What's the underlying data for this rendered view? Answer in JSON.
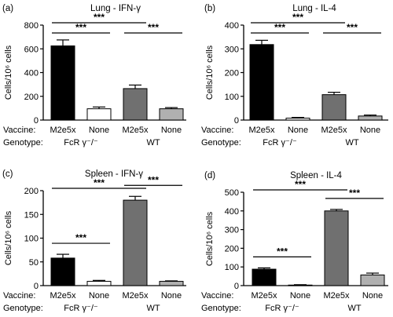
{
  "chart_data": [
    {
      "type": "bar",
      "panel_label": "(a)",
      "title": "Lung - IFN-γ",
      "ylabel": "Cells/10⁶ cells",
      "ylim": [
        0,
        800
      ],
      "yticks": [
        "0",
        "200",
        "400",
        "600",
        "800"
      ],
      "row_labels": [
        "Vaccine:",
        "Genotype:"
      ],
      "categories": [
        "M2e5x",
        "None",
        "M2e5x",
        "None"
      ],
      "groups": [
        "FcR γ⁻/⁻",
        "WT"
      ],
      "values": [
        625,
        95,
        265,
        95
      ],
      "errors": [
        50,
        15,
        30,
        10
      ],
      "colors": [
        "#000000",
        "#ffffff",
        "#707070",
        "#b0b0b0"
      ],
      "significance": [
        {
          "from": 0,
          "to": 2,
          "label": "***"
        },
        {
          "from": 0,
          "to": 1,
          "label": "***"
        },
        {
          "from": 2,
          "to": 3,
          "label": "***"
        }
      ]
    },
    {
      "type": "bar",
      "panel_label": "(b)",
      "title": "Lung - IL-4",
      "ylabel": "Cells/10⁶ cells",
      "ylim": [
        0,
        400
      ],
      "yticks": [
        "0",
        "100",
        "200",
        "300",
        "400"
      ],
      "row_labels": [
        "Vaccine:",
        "Genotype:"
      ],
      "categories": [
        "M2e5x",
        "None",
        "M2e5x",
        "None"
      ],
      "groups": [
        "FcR γ⁻/⁻",
        "WT"
      ],
      "values": [
        318,
        8,
        107,
        17
      ],
      "errors": [
        18,
        3,
        10,
        4
      ],
      "colors": [
        "#000000",
        "#ffffff",
        "#707070",
        "#b0b0b0"
      ],
      "significance": [
        {
          "from": 0,
          "to": 2,
          "label": "***"
        },
        {
          "from": 0,
          "to": 1,
          "label": "***"
        },
        {
          "from": 2,
          "to": 3,
          "label": "***"
        }
      ]
    },
    {
      "type": "bar",
      "panel_label": "(c)",
      "title": "Spleen - IFN-γ",
      "ylabel": "Cells/10⁶ cells",
      "ylim": [
        0,
        200
      ],
      "yticks": [
        "0",
        "50",
        "100",
        "150",
        "200"
      ],
      "row_labels": [
        "Vaccine:",
        "Genotype:"
      ],
      "categories": [
        "M2e5x",
        "None",
        "M2e5x",
        "None"
      ],
      "groups": [
        "FcR γ⁻/⁻",
        "WT"
      ],
      "values": [
        58,
        9,
        180,
        9
      ],
      "errors": [
        8,
        2,
        8,
        1
      ],
      "colors": [
        "#000000",
        "#ffffff",
        "#707070",
        "#b0b0b0"
      ],
      "significance": [
        {
          "from": 0,
          "to": 2,
          "label": "***"
        },
        {
          "from": 2,
          "to": 3,
          "label": "***"
        },
        {
          "from": 0,
          "to": 1,
          "label": "***"
        }
      ]
    },
    {
      "type": "bar",
      "panel_label": "(d)",
      "title": "Spleen - IL-4",
      "ylabel": "Cells/10⁶ cells",
      "ylim": [
        0,
        500
      ],
      "yticks": [
        "0",
        "100",
        "200",
        "300",
        "400",
        "500"
      ],
      "row_labels": [
        "Vaccine:",
        "Genotype:"
      ],
      "categories": [
        "M2e5x",
        "None",
        "M2e5x",
        "None"
      ],
      "groups": [
        "FcR γ⁻/⁻",
        "WT"
      ],
      "values": [
        88,
        3,
        400,
        57
      ],
      "errors": [
        7,
        2,
        8,
        10
      ],
      "colors": [
        "#000000",
        "#ffffff",
        "#707070",
        "#b0b0b0"
      ],
      "significance": [
        {
          "from": 0,
          "to": 2,
          "label": "***"
        },
        {
          "from": 0,
          "to": 1,
          "label": "***"
        },
        {
          "from": 2,
          "to": 3,
          "label": "***"
        }
      ]
    }
  ]
}
